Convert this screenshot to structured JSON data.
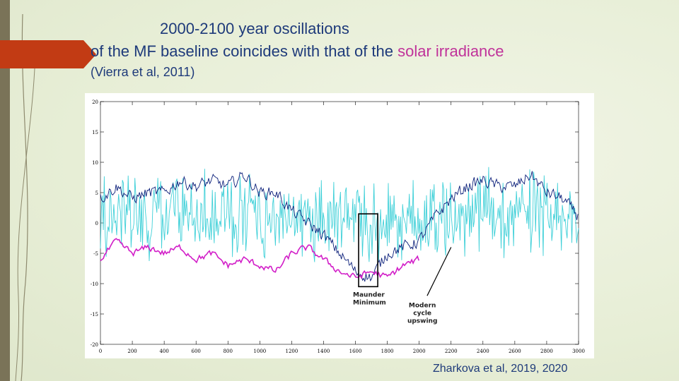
{
  "title": {
    "line1": "2000-2100 year oscillations",
    "line2_a": "of the MF baseline coincides with that of the ",
    "line2_b": "solar irradiance",
    "line3": "(Vierra et al, 2011)"
  },
  "credit": "Zharkova et al, 2019, 2020",
  "colors": {
    "accent": "#c23b14",
    "title_text": "#1e3a7a",
    "title_highlight": "#c0339a",
    "series_navy": "#0b1f7a",
    "series_cyan": "#3fd0d8",
    "series_magenta": "#d21ec8"
  },
  "chart_data": {
    "type": "line",
    "xlabel": "",
    "ylabel": "",
    "xlim": [
      0,
      3000
    ],
    "ylim": [
      -20,
      20
    ],
    "x_ticks": [
      "0",
      "200",
      "400",
      "600",
      "800",
      "1000",
      "1200",
      "1400",
      "1600",
      "1800",
      "2000",
      "2200",
      "2400",
      "2600",
      "2800",
      "3000"
    ],
    "y_ticks": [
      "20",
      "15",
      "10",
      "5",
      "0",
      "-5",
      "-10",
      "-15",
      "-20"
    ],
    "y_tick_values": [
      20,
      15,
      10,
      5,
      0,
      -5,
      -10,
      -15,
      -20
    ],
    "series": [
      {
        "color": "#0b1f7a",
        "x": [
          0,
          100,
          200,
          300,
          400,
          500,
          600,
          700,
          800,
          900,
          1000,
          1100,
          1200,
          1300,
          1400,
          1500,
          1600,
          1700,
          1800,
          1900,
          2000,
          2100,
          2200,
          2300,
          2400,
          2500,
          2600,
          2700,
          2800,
          2900,
          3000
        ],
        "values": [
          4,
          6,
          4,
          5,
          5,
          7,
          6,
          7,
          6,
          8,
          5,
          5,
          2,
          0,
          -2,
          -5,
          -8,
          -9,
          -5,
          -4,
          -3,
          1,
          4,
          6,
          7,
          6,
          6,
          8,
          5,
          4,
          1
        ],
        "noise": 1.5
      },
      {
        "color": "#3fd0d8",
        "x": [
          0,
          100,
          200,
          300,
          400,
          500,
          600,
          700,
          800,
          900,
          1000,
          1100,
          1200,
          1300,
          1400,
          1500,
          1600,
          1700,
          1800,
          1900,
          2000,
          2100,
          2200,
          2300,
          2400,
          2500,
          2600,
          2700,
          2800,
          2900,
          3000
        ],
        "values": [
          1,
          2,
          1,
          1,
          2,
          2,
          1,
          2,
          2,
          1,
          1,
          1,
          0,
          1,
          0,
          0,
          1,
          0,
          0,
          1,
          0,
          1,
          1,
          2,
          2,
          1,
          2,
          2,
          1,
          1,
          0
        ],
        "noise": 5.5
      },
      {
        "color": "#d21ec8",
        "x": [
          0,
          100,
          200,
          300,
          400,
          500,
          600,
          700,
          800,
          900,
          1000,
          1100,
          1200,
          1300,
          1400,
          1500,
          1600,
          1700,
          1800,
          1900,
          2000
        ],
        "values": [
          -6,
          -3,
          -5,
          -4,
          -5,
          -4,
          -6,
          -5,
          -7,
          -6,
          -7,
          -8,
          -5,
          -4,
          -6,
          -8,
          -9,
          -8,
          -9,
          -7,
          -6
        ],
        "noise": 0.8
      }
    ],
    "annotations": [
      {
        "text_lines": [
          "Maunder",
          "Minimum"
        ],
        "x_range": [
          1620,
          1740
        ],
        "y_range": [
          -10,
          0
        ]
      },
      {
        "text_lines": [
          "Modern",
          "cycle",
          "upswing"
        ],
        "x": 2100,
        "y": -8
      }
    ]
  }
}
